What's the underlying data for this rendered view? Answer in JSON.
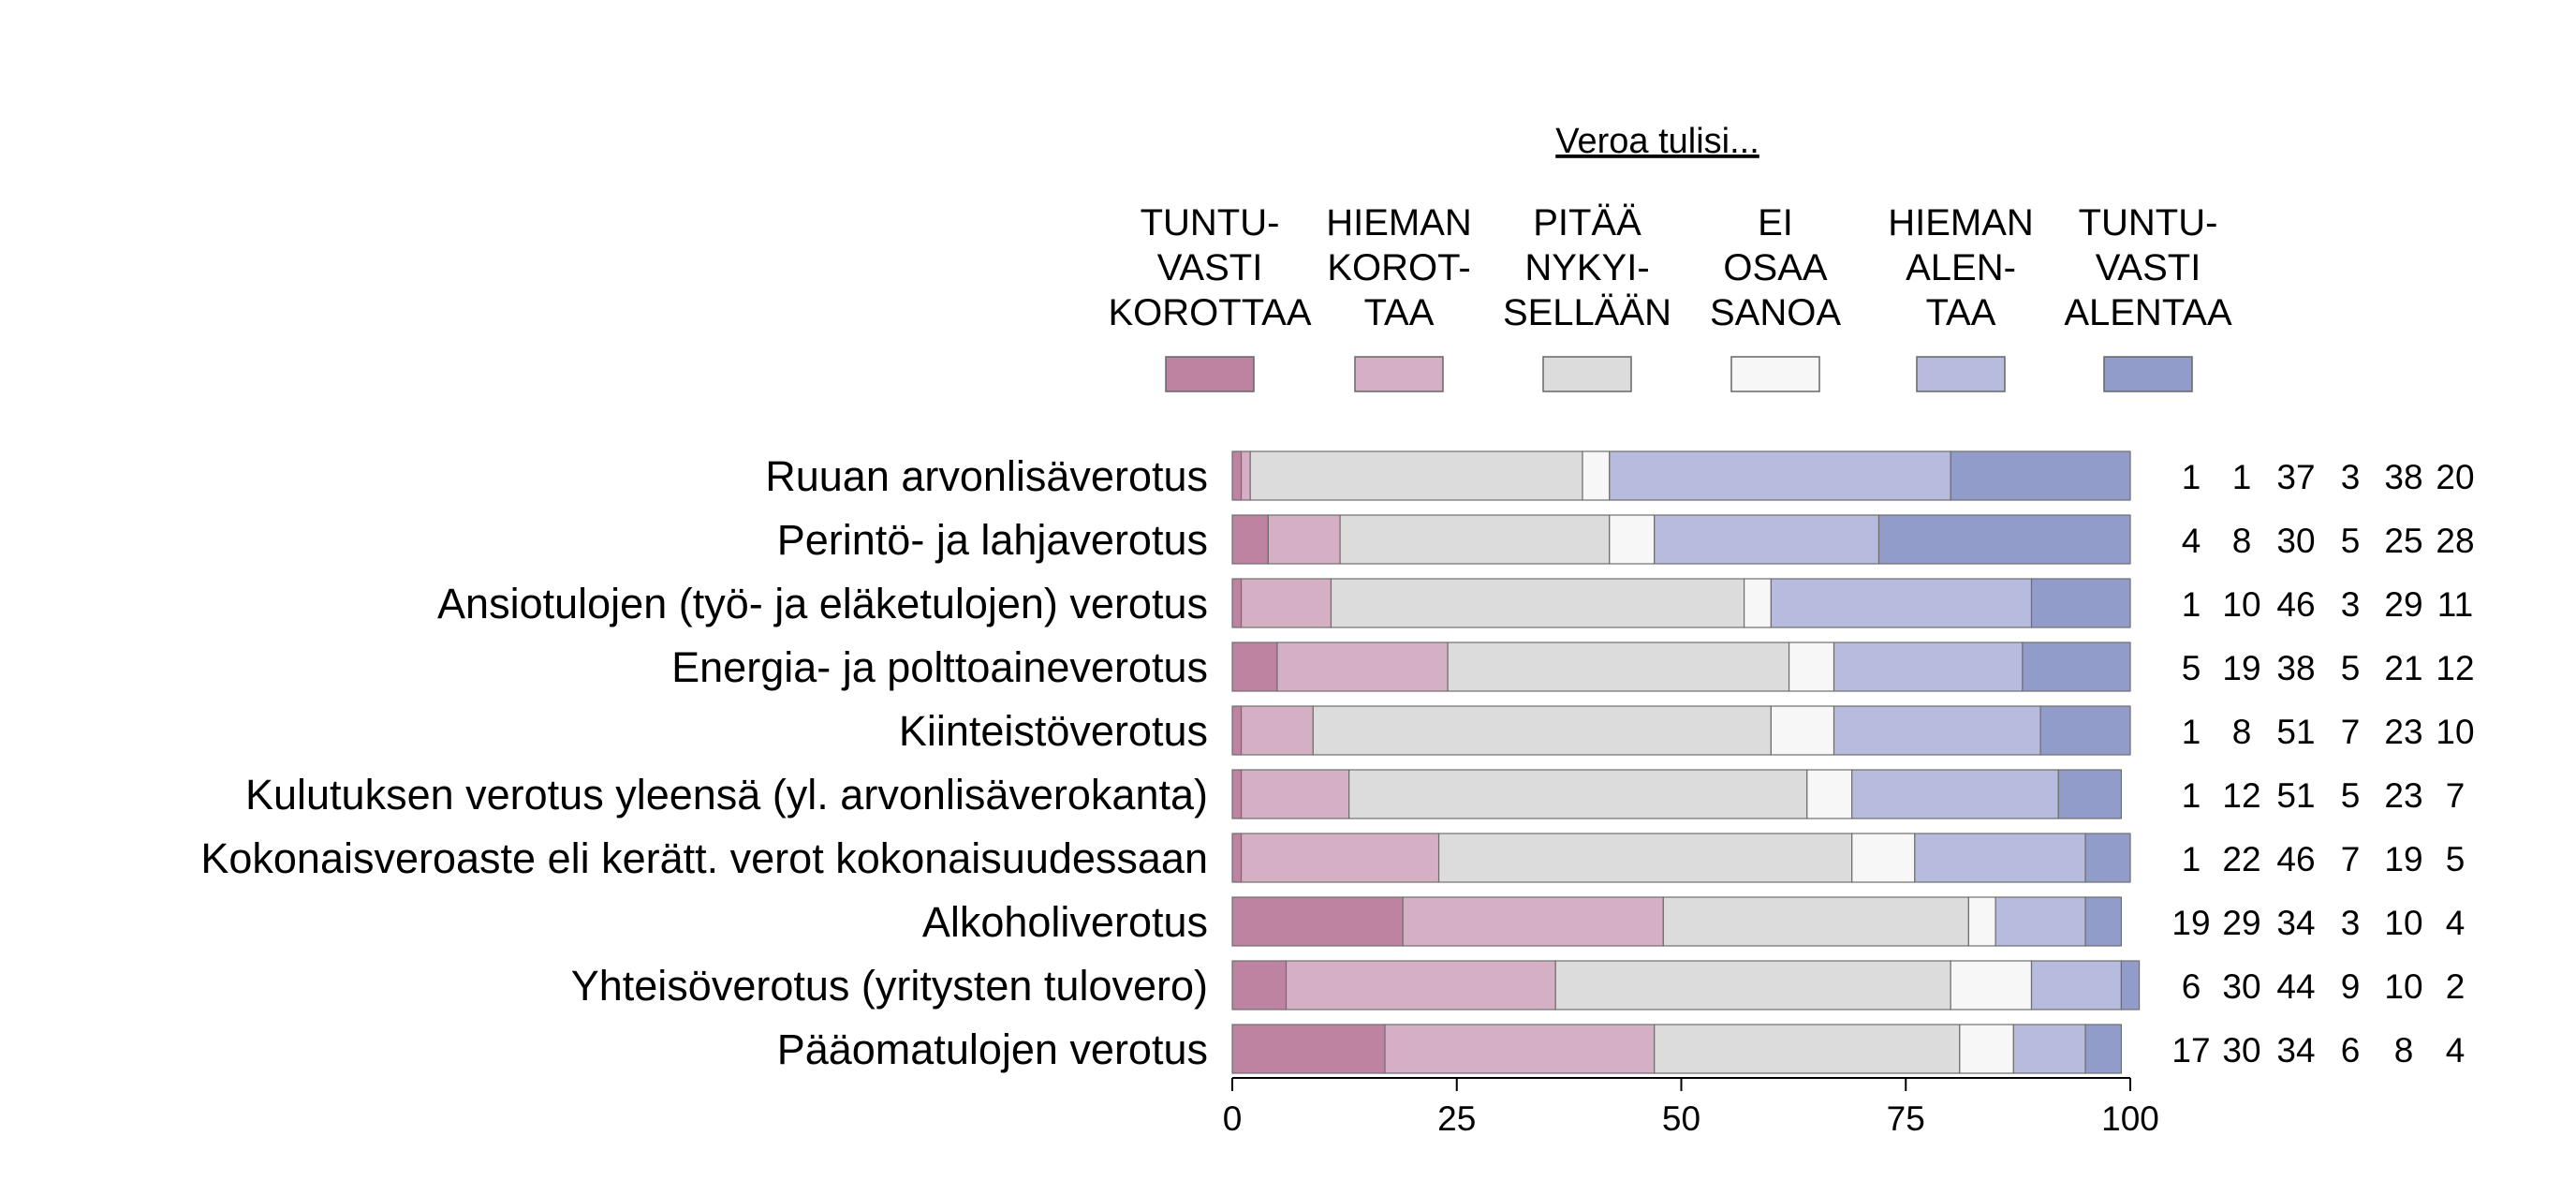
{
  "chart_data": {
    "type": "bar",
    "orientation": "horizontal",
    "stacked": true,
    "legend_title": "Veroa tulisi...",
    "legend_placement": "top",
    "xlim": [
      0,
      100
    ],
    "xticks": [
      "0",
      "25",
      "50",
      "75",
      "100"
    ],
    "grid": false,
    "categories": [
      "Ruuan arvonlisäverotus",
      "Perintö- ja lahjaverotus",
      "Ansiotulojen (työ- ja eläketulojen) verotus",
      "Energia- ja polttoaineverotus",
      "Kiinteistöverotus",
      "Kulutuksen verotus yleensä (yl. arvonlisäverokanta)",
      "Kokonaisveroaste eli kerätt. verot kokonaisuudessaan",
      "Alkoholiverotus",
      "Yhteisöverotus (yritysten tulovero)",
      "Pääomatulojen verotus"
    ],
    "series": [
      {
        "name": "TUNTU-\nVASTI\nKOROTTAA",
        "lines": [
          "TUNTU-",
          "VASTI",
          "KOROTTAA"
        ],
        "color": "#bd83a0",
        "values": [
          1,
          4,
          1,
          5,
          1,
          1,
          1,
          19,
          6,
          17
        ]
      },
      {
        "name": "HIEMAN\nKOROT-\nTAA",
        "lines": [
          "HIEMAN",
          "KOROT-",
          "TAA"
        ],
        "color": "#d5afc3",
        "values": [
          1,
          8,
          10,
          19,
          8,
          12,
          22,
          29,
          30,
          30
        ]
      },
      {
        "name": "PITÄÄ\nNYKYI-\nSELLÄÄN",
        "lines": [
          "PITÄÄ",
          "NYKYI-",
          "SELLÄÄN"
        ],
        "color": "#dcdcdc",
        "values": [
          37,
          30,
          46,
          38,
          51,
          51,
          46,
          34,
          44,
          34
        ]
      },
      {
        "name": "EI\nOSAA\nSANOA",
        "lines": [
          "EI",
          "OSAA",
          "SANOA"
        ],
        "color": "#f7f7f7",
        "values": [
          3,
          5,
          3,
          5,
          7,
          5,
          7,
          3,
          9,
          6
        ]
      },
      {
        "name": "HIEMAN\nALEN-\nTAA",
        "lines": [
          "HIEMAN",
          "ALEN-",
          "TAA"
        ],
        "color": "#b7bbdd",
        "values": [
          38,
          25,
          29,
          21,
          23,
          23,
          19,
          10,
          10,
          8
        ]
      },
      {
        "name": "TUNTU-\nVASTI\nALENTAA",
        "lines": [
          "TUNTU-",
          "VASTI",
          "ALENTAA"
        ],
        "color": "#919ccb",
        "values": [
          20,
          28,
          11,
          12,
          10,
          7,
          5,
          4,
          2,
          4
        ]
      }
    ]
  }
}
